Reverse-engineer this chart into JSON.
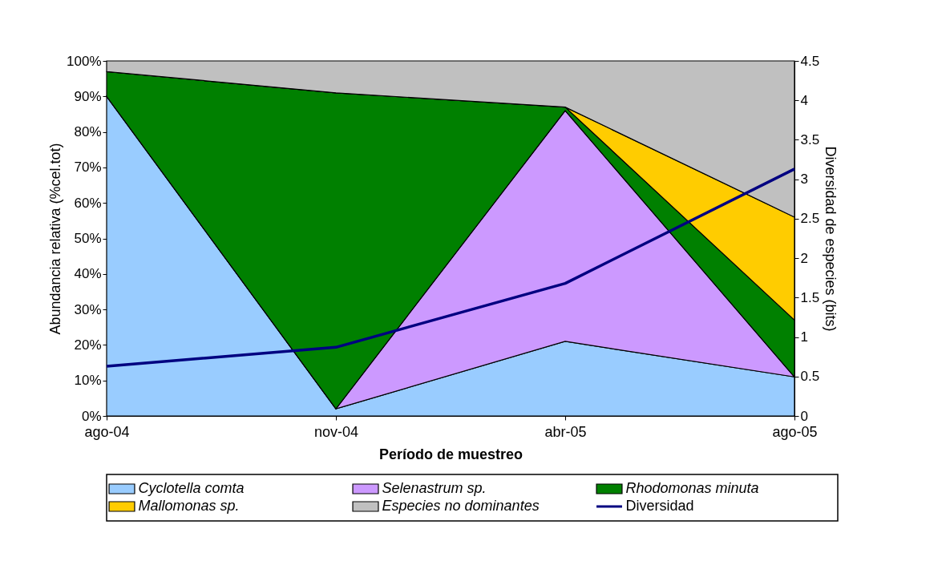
{
  "chart_data": {
    "type": "area",
    "stacked": true,
    "xlabel": "Período de muestreo",
    "ylabel": "Abundancia relativa (%cel.tot)",
    "y2label": "Diversidad de especies (bits)",
    "categories": [
      "ago-04",
      "nov-04",
      "abr-05",
      "ago-05"
    ],
    "series": [
      {
        "name": "Cyclotella comta",
        "color": "#99ccff",
        "values": [
          90,
          2,
          21,
          11
        ]
      },
      {
        "name": "Selenastrum sp.",
        "color": "#cc99ff",
        "values": [
          0,
          0,
          65,
          0
        ]
      },
      {
        "name": "Rhodomonas minuta",
        "color": "#008000",
        "values": [
          7,
          89,
          1,
          16
        ]
      },
      {
        "name": "Mallomonas sp.",
        "color": "#ffcc00",
        "values": [
          0,
          0,
          0,
          29
        ]
      },
      {
        "name": "Especies no dominantes",
        "color": "#c0c0c0",
        "values": [
          3,
          9,
          13,
          44
        ]
      },
      {
        "name": "Diversidad",
        "color": "#000080",
        "type": "line",
        "axis": "y2",
        "values": [
          0.63,
          0.87,
          1.68,
          3.13
        ]
      }
    ],
    "ylim": [
      0,
      100
    ],
    "yticks": [
      {
        "value": 0,
        "label": "0%"
      },
      {
        "value": 10,
        "label": "10%"
      },
      {
        "value": 20,
        "label": "20%"
      },
      {
        "value": 30,
        "label": "30%"
      },
      {
        "value": 40,
        "label": "40%"
      },
      {
        "value": 50,
        "label": "50%"
      },
      {
        "value": 60,
        "label": "60%"
      },
      {
        "value": 70,
        "label": "70%"
      },
      {
        "value": 80,
        "label": "80%"
      },
      {
        "value": 90,
        "label": "90%"
      },
      {
        "value": 100,
        "label": "100%"
      }
    ],
    "y2lim": [
      0,
      4.5
    ],
    "y2ticks": [
      0,
      0.5,
      1,
      1.5,
      2,
      2.5,
      3,
      3.5,
      4,
      4.5
    ],
    "legend": "bottom",
    "marker": "none",
    "line_style": "solid"
  }
}
